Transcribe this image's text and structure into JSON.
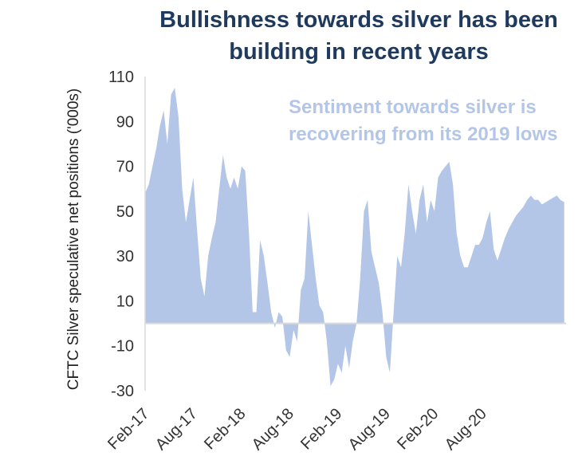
{
  "chart_data": {
    "type": "area",
    "title_lines": [
      "Bullishness towards silver has been",
      "building in recent years"
    ],
    "annotation_lines": [
      "Sentiment towards silver is",
      "recovering from its 2019 lows"
    ],
    "xlabel": "",
    "ylabel": "CFTC Silver speculative net positions ('000s)",
    "ylim": [
      -30,
      110
    ],
    "yticks": [
      -30,
      -10,
      10,
      30,
      50,
      70,
      90,
      110
    ],
    "x_tick_labels": [
      "Feb-17",
      "Aug-17",
      "Feb-18",
      "Aug-18",
      "Feb-19",
      "Aug-19",
      "Feb-20",
      "Aug-20"
    ],
    "x_tick_positions": [
      0,
      26,
      52,
      78,
      104,
      130,
      156,
      182
    ],
    "x_range": [
      0,
      227
    ],
    "grid": false,
    "series": [
      {
        "color": "#b4c6e7",
        "x": [
          0,
          2,
          4,
          6,
          8,
          10,
          12,
          14,
          16,
          18,
          20,
          22,
          24,
          26,
          28,
          30,
          32,
          34,
          36,
          38,
          40,
          42,
          44,
          46,
          48,
          50,
          52,
          54,
          56,
          58,
          60,
          62,
          64,
          66,
          68,
          70,
          72,
          74,
          76,
          78,
          80,
          82,
          84,
          86,
          88,
          90,
          92,
          94,
          96,
          98,
          100,
          102,
          104,
          106,
          108,
          110,
          112,
          114,
          116,
          118,
          120,
          122,
          124,
          126,
          128,
          130,
          132,
          134,
          136,
          138,
          140,
          142,
          144,
          146,
          148,
          150,
          152,
          154,
          156,
          158,
          160,
          162,
          164,
          166,
          168,
          170,
          172,
          174,
          176,
          178,
          180,
          182,
          184,
          186,
          188,
          190,
          192,
          194,
          196,
          198,
          200,
          202,
          204,
          206,
          208,
          210,
          212,
          214,
          216,
          218,
          220,
          222,
          224,
          226
        ],
        "values": [
          58,
          62,
          70,
          78,
          88,
          95,
          80,
          102,
          105,
          92,
          60,
          45,
          55,
          65,
          42,
          20,
          12,
          30,
          38,
          45,
          60,
          75,
          65,
          60,
          65,
          60,
          70,
          68,
          40,
          5,
          5,
          37,
          30,
          18,
          5,
          -2,
          5,
          3,
          -12,
          -15,
          -3,
          -8,
          15,
          20,
          50,
          35,
          20,
          8,
          5,
          -8,
          -28,
          -25,
          -18,
          -22,
          -10,
          -20,
          -8,
          0,
          20,
          50,
          55,
          32,
          25,
          18,
          5,
          -15,
          -22,
          5,
          30,
          25,
          40,
          62,
          50,
          40,
          55,
          62,
          45,
          55,
          50,
          65,
          68,
          70,
          72,
          62,
          40,
          30,
          25,
          25,
          30,
          35,
          35,
          38,
          45,
          50,
          33,
          28,
          33,
          38,
          42,
          45,
          48,
          50,
          52,
          55,
          57,
          55,
          55,
          53,
          54,
          55,
          56,
          57,
          55,
          54
        ]
      }
    ]
  }
}
